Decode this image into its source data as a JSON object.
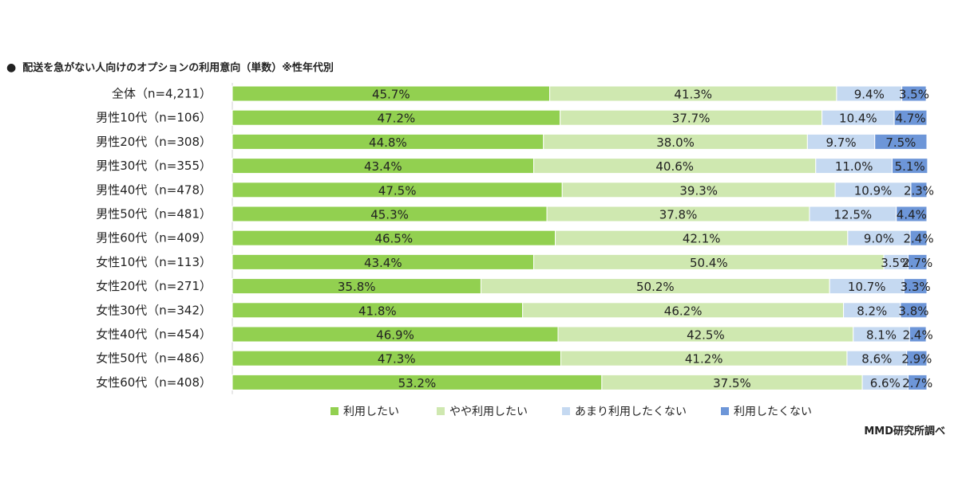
{
  "page": {
    "title": "配送を急がない人向けのオプションの利用意向（単数）※性年代別",
    "title_bullet": "●",
    "source": "MMD研究所調べ"
  },
  "chart_data": {
    "type": "bar",
    "orientation": "horizontal",
    "stacked": "100%",
    "title": "配送を急がない人向けのオプションの利用意向（単数）※性年代別",
    "categories": [
      "全体（n=4,211）",
      "男性10代（n=106）",
      "男性20代（n=308）",
      "男性30代（n=355）",
      "男性40代（n=478）",
      "男性50代（n=481）",
      "男性60代（n=409）",
      "女性10代（n=113）",
      "女性20代（n=271）",
      "女性30代（n=342）",
      "女性40代（n=454）",
      "女性50代（n=486）",
      "女性60代（n=408）"
    ],
    "series": [
      {
        "name": "利用したい",
        "color": "#92d050",
        "values": [
          45.7,
          47.2,
          44.8,
          43.4,
          47.5,
          45.3,
          46.5,
          43.4,
          35.8,
          41.8,
          46.9,
          47.3,
          53.2
        ]
      },
      {
        "name": "やや利用したい",
        "color": "#cfe8b0",
        "values": [
          41.3,
          37.7,
          38.0,
          40.6,
          39.3,
          37.8,
          42.1,
          50.4,
          50.2,
          46.2,
          42.5,
          41.2,
          37.5
        ]
      },
      {
        "name": "あまり利用したくない",
        "color": "#c5d9f1",
        "values": [
          9.4,
          10.4,
          9.7,
          11.0,
          10.9,
          12.5,
          9.0,
          3.5,
          10.7,
          8.2,
          8.1,
          8.6,
          6.6
        ]
      },
      {
        "name": "利用したくない",
        "color": "#6d96d8",
        "values": [
          3.5,
          4.7,
          7.5,
          5.1,
          2.3,
          4.4,
          2.4,
          2.7,
          3.3,
          3.8,
          2.4,
          2.9,
          2.7
        ]
      }
    ],
    "value_label_suffix": "%",
    "xlim": [
      0,
      100
    ],
    "legend_position": "bottom",
    "grid": false
  }
}
